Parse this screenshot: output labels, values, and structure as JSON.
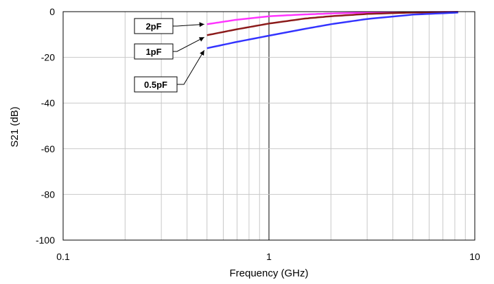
{
  "chart_data": {
    "type": "line",
    "xlabel": "Frequency (GHz)",
    "ylabel": "S21 (dB)",
    "x_scale": "log",
    "xlim": [
      0.1,
      10
    ],
    "ylim": [
      -100,
      0
    ],
    "x_ticks": [
      0.1,
      1,
      10
    ],
    "x_tick_labels": [
      "0.1",
      "1",
      "10"
    ],
    "y_ticks": [
      0,
      -20,
      -40,
      -60,
      -80,
      -100
    ],
    "y_tick_labels": [
      "0",
      "-20",
      "-40",
      "-60",
      "-80",
      "-100"
    ],
    "grid": true,
    "series": [
      {
        "name": "2pF",
        "color": "#ff33ff",
        "x": [
          0.5,
          0.7,
          1,
          1.5,
          2,
          3,
          5,
          8.3
        ],
        "y": [
          -5.5,
          -3.5,
          -2,
          -1.2,
          -0.8,
          -0.4,
          -0.2,
          -0.1
        ]
      },
      {
        "name": "1pF",
        "color": "#8b1a1a",
        "x": [
          0.5,
          0.7,
          1,
          1.5,
          2,
          3,
          5,
          8.3
        ],
        "y": [
          -10.3,
          -7.7,
          -5.2,
          -3,
          -2,
          -1,
          -0.4,
          -0.15
        ]
      },
      {
        "name": "0.5pF",
        "color": "#3333ff",
        "x": [
          0.5,
          0.7,
          1,
          1.5,
          2,
          3,
          5,
          8.3
        ],
        "y": [
          -16,
          -13.2,
          -10.5,
          -7.5,
          -5.5,
          -3.2,
          -1.3,
          -0.4
        ]
      }
    ],
    "annotations": [
      {
        "text": "2pF",
        "target_series": "2pF"
      },
      {
        "text": "1pF",
        "target_series": "1pF"
      },
      {
        "text": "0.5pF",
        "target_series": "0.5pF"
      }
    ]
  }
}
